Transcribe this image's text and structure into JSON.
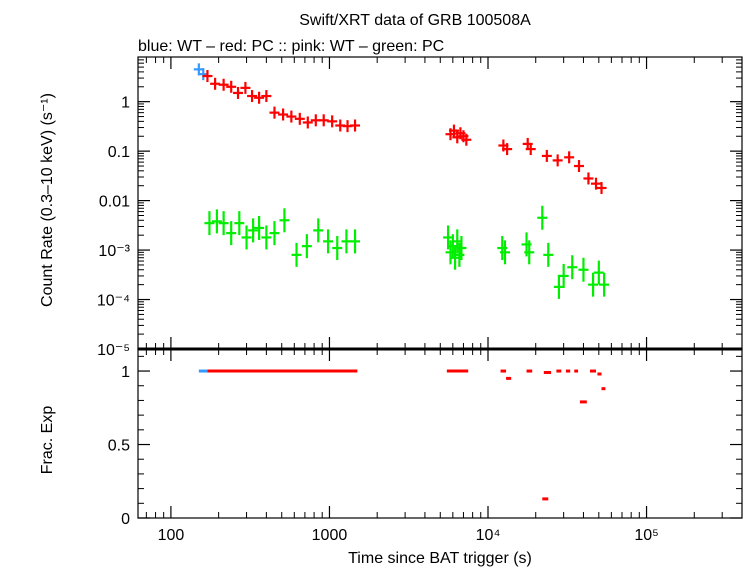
{
  "chart_data": {
    "type": "scatter",
    "title": "Swift/XRT data of GRB 100508A",
    "subtitle": "blue: WT  – red: PC  :: pink: WT  – green: PC",
    "xlabel": "Time since BAT trigger (s)",
    "x_scale": "log",
    "xlim": [
      62,
      400000
    ],
    "x_ticks": [
      "100",
      "1000",
      "10⁴",
      "10⁵"
    ],
    "panels": [
      {
        "name": "count-rate",
        "ylabel": "Count Rate (0.3–10 keV) (s⁻¹)",
        "y_scale": "log",
        "ylim": [
          1e-05,
          8
        ],
        "y_ticks": [
          "1",
          "0.1",
          "0.01",
          "10⁻³",
          "10⁻⁴",
          "10⁻⁵"
        ],
        "series": [
          {
            "color": "#3399ff",
            "points": [
              [
                150,
                4.5
              ],
              [
                160,
                3.6
              ]
            ]
          },
          {
            "color": "#ff0000",
            "points": [
              [
                170,
                3.3
              ],
              [
                190,
                2.3
              ],
              [
                215,
                2.2
              ],
              [
                240,
                2.0
              ],
              [
                265,
                1.5
              ],
              [
                295,
                1.9
              ],
              [
                325,
                1.3
              ],
              [
                360,
                1.2
              ],
              [
                400,
                1.3
              ],
              [
                450,
                0.6
              ],
              [
                510,
                0.55
              ],
              [
                575,
                0.5
              ],
              [
                650,
                0.45
              ],
              [
                730,
                0.38
              ],
              [
                820,
                0.42
              ],
              [
                920,
                0.42
              ],
              [
                1040,
                0.4
              ],
              [
                1170,
                0.33
              ],
              [
                1300,
                0.32
              ],
              [
                1450,
                0.33
              ],
              [
                5800,
                0.22
              ],
              [
                6100,
                0.26
              ],
              [
                6400,
                0.19
              ],
              [
                6700,
                0.23
              ],
              [
                7000,
                0.2
              ],
              [
                7300,
                0.17
              ],
              [
                12500,
                0.13
              ],
              [
                13200,
                0.11
              ],
              [
                17800,
                0.14
              ],
              [
                18600,
                0.11
              ],
              [
                23500,
                0.08
              ],
              [
                27500,
                0.065
              ],
              [
                32500,
                0.075
              ],
              [
                37500,
                0.05
              ],
              [
                43000,
                0.028
              ],
              [
                48000,
                0.022
              ],
              [
                52000,
                0.018
              ]
            ]
          },
          {
            "color": "#00ee00",
            "points": [
              [
                175,
                0.0035
              ],
              [
                195,
                0.0038
              ],
              [
                215,
                0.0035
              ],
              [
                240,
                0.0022
              ],
              [
                270,
                0.0035
              ],
              [
                300,
                0.0018
              ],
              [
                330,
                0.0025
              ],
              [
                360,
                0.0028
              ],
              [
                400,
                0.0018
              ],
              [
                450,
                0.0022
              ],
              [
                520,
                0.004
              ],
              [
                620,
                0.0008
              ],
              [
                720,
                0.0012
              ],
              [
                850,
                0.0025
              ],
              [
                980,
                0.0015
              ],
              [
                1120,
                0.0011
              ],
              [
                1280,
                0.0015
              ],
              [
                1450,
                0.0015
              ],
              [
                5600,
                0.0018
              ],
              [
                5800,
                0.0009
              ],
              [
                6000,
                0.0012
              ],
              [
                6200,
                0.0007
              ],
              [
                6400,
                0.0015
              ],
              [
                6600,
                0.0008
              ],
              [
                6800,
                0.0011
              ],
              [
                12300,
                0.0011
              ],
              [
                12800,
                0.0009
              ],
              [
                17500,
                0.0013
              ],
              [
                18200,
                0.0009
              ],
              [
                22000,
                0.0045
              ],
              [
                24000,
                0.0008
              ],
              [
                28000,
                0.00018
              ],
              [
                30000,
                0.0003
              ],
              [
                34000,
                0.00045
              ],
              [
                40000,
                0.0004
              ],
              [
                46000,
                0.0002
              ],
              [
                50000,
                0.00035
              ],
              [
                54000,
                0.0002
              ]
            ]
          }
        ]
      },
      {
        "name": "frac-exp",
        "ylabel": "Frac. Exp",
        "y_scale": "linear",
        "ylim": [
          0,
          1.15
        ],
        "y_ticks": [
          "0",
          "0.5",
          "1"
        ],
        "segments": [
          {
            "color": "#3399ff",
            "x0": 150,
            "x1": 170,
            "y": 1.0
          },
          {
            "color": "#ff0000",
            "x0": 170,
            "x1": 1500,
            "y": 1.0
          },
          {
            "color": "#ff0000",
            "x0": 5500,
            "x1": 7500,
            "y": 1.0
          },
          {
            "color": "#ff0000",
            "x0": 12000,
            "x1": 13000,
            "y": 1.0
          },
          {
            "color": "#ff0000",
            "x0": 13000,
            "x1": 14000,
            "y": 0.95
          },
          {
            "color": "#ff0000",
            "x0": 17500,
            "x1": 19000,
            "y": 1.0
          },
          {
            "color": "#ff0000",
            "x0": 22500,
            "x1": 25000,
            "y": 0.99
          },
          {
            "color": "#ff0000",
            "x0": 22000,
            "x1": 24000,
            "y": 0.13
          },
          {
            "color": "#ff0000",
            "x0": 27000,
            "x1": 29000,
            "y": 1.0
          },
          {
            "color": "#ff0000",
            "x0": 31000,
            "x1": 33000,
            "y": 1.0
          },
          {
            "color": "#ff0000",
            "x0": 35000,
            "x1": 37000,
            "y": 1.0
          },
          {
            "color": "#ff0000",
            "x0": 38000,
            "x1": 42000,
            "y": 0.79
          },
          {
            "color": "#ff0000",
            "x0": 44000,
            "x1": 48000,
            "y": 1.0
          },
          {
            "color": "#ff0000",
            "x0": 49000,
            "x1": 52000,
            "y": 0.98
          },
          {
            "color": "#ff0000",
            "x0": 52000,
            "x1": 55000,
            "y": 0.88
          }
        ]
      }
    ]
  }
}
